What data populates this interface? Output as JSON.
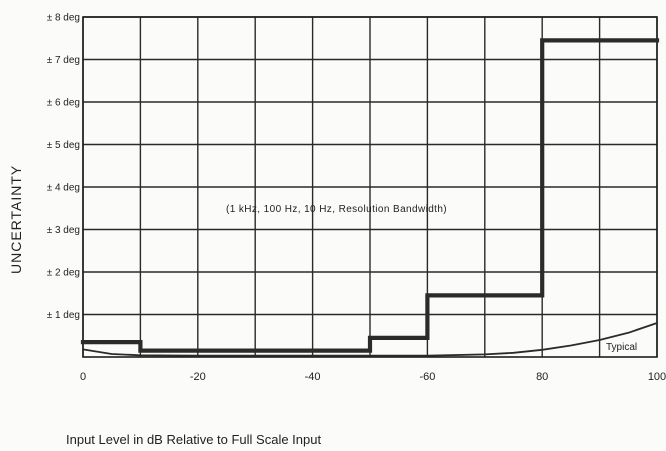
{
  "chart_data": {
    "type": "line",
    "ylabel": "UNCERTAINTY",
    "xlabel": "Input Level in dB Relative to Full Scale Input",
    "annotation": "(1 kHz, 100 Hz, 10 Hz, Resolution Bandwidth)",
    "xlim": [
      0,
      -100
    ],
    "ylim": [
      0,
      8
    ],
    "x_ticks": [
      {
        "value": 0,
        "label": "0"
      },
      {
        "value": -20,
        "label": "-20"
      },
      {
        "value": -40,
        "label": "-40"
      },
      {
        "value": -60,
        "label": "-60"
      },
      {
        "value": -80,
        "label": "80"
      },
      {
        "value": -100,
        "label": "100"
      }
    ],
    "x_grid": [
      0,
      -10,
      -20,
      -30,
      -40,
      -50,
      -60,
      -70,
      -80,
      -90,
      -100
    ],
    "y_ticks": [
      {
        "value": 1,
        "label": "± 1 deg"
      },
      {
        "value": 2,
        "label": "± 2 deg"
      },
      {
        "value": 3,
        "label": "± 3 deg"
      },
      {
        "value": 4,
        "label": "± 4 deg"
      },
      {
        "value": 5,
        "label": "± 5 deg"
      },
      {
        "value": 6,
        "label": "± 6 deg"
      },
      {
        "value": 7,
        "label": "± 7 deg"
      },
      {
        "value": 8,
        "label": "± 8 deg"
      }
    ],
    "grid": true,
    "series": [
      {
        "kind": "step",
        "x": [
          0,
          -10,
          -10,
          -50,
          -50,
          -60,
          -60,
          -80,
          -80,
          -100
        ],
        "y": [
          0.35,
          0.35,
          0.15,
          0.15,
          0.45,
          0.45,
          1.45,
          1.45,
          7.45,
          7.45
        ]
      },
      {
        "name": "Typical",
        "kind": "curve",
        "x": [
          0,
          -5,
          -10,
          -20,
          -30,
          -40,
          -50,
          -60,
          -70,
          -75,
          -80,
          -85,
          -90,
          -95,
          -100
        ],
        "y": [
          0.18,
          0.07,
          0.04,
          0.03,
          0.03,
          0.03,
          0.03,
          0.03,
          0.06,
          0.1,
          0.17,
          0.27,
          0.4,
          0.57,
          0.8
        ]
      }
    ],
    "colors": {
      "ink": "#2b2b2b",
      "background": "#fbfbf9"
    }
  }
}
